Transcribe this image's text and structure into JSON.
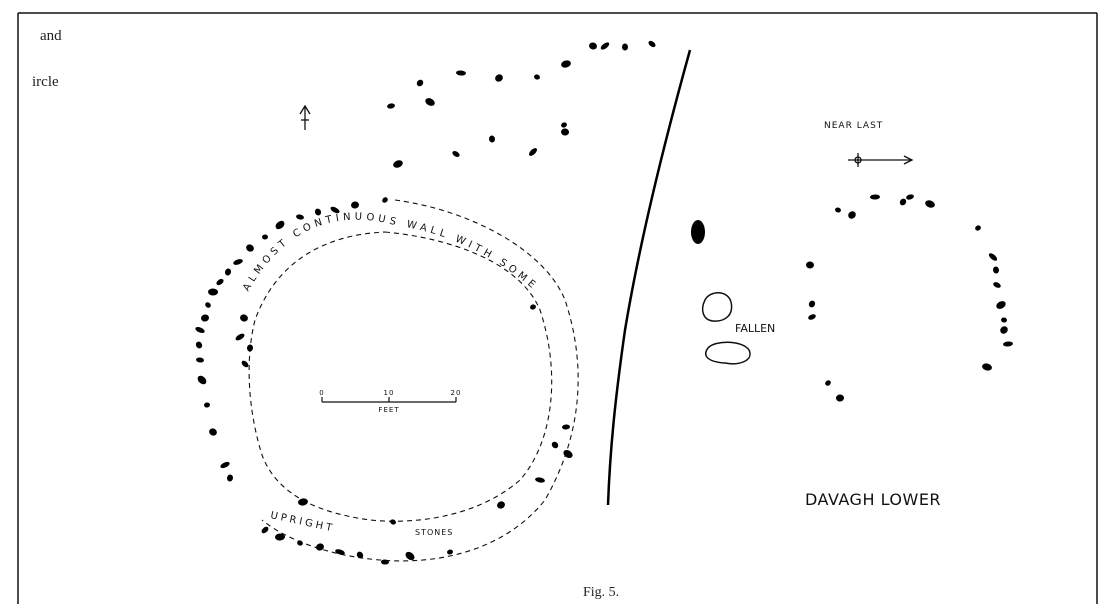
{
  "margin_text": {
    "line_1": "and",
    "line_2": "ircle"
  },
  "plan_left": {
    "wall_label": "ALMOST CONTINUOUS WALL WITH SOME",
    "upright": "UPRIGHT",
    "stones": "STONES",
    "scale": {
      "label": "FEET",
      "ticks": [
        "0",
        "10",
        "20"
      ]
    }
  },
  "plan_right": {
    "near_last": "NEAR LAST",
    "fallen": "FALLEN",
    "site_name": "DAVAGH LOWER"
  },
  "caption": "Fig. 5."
}
